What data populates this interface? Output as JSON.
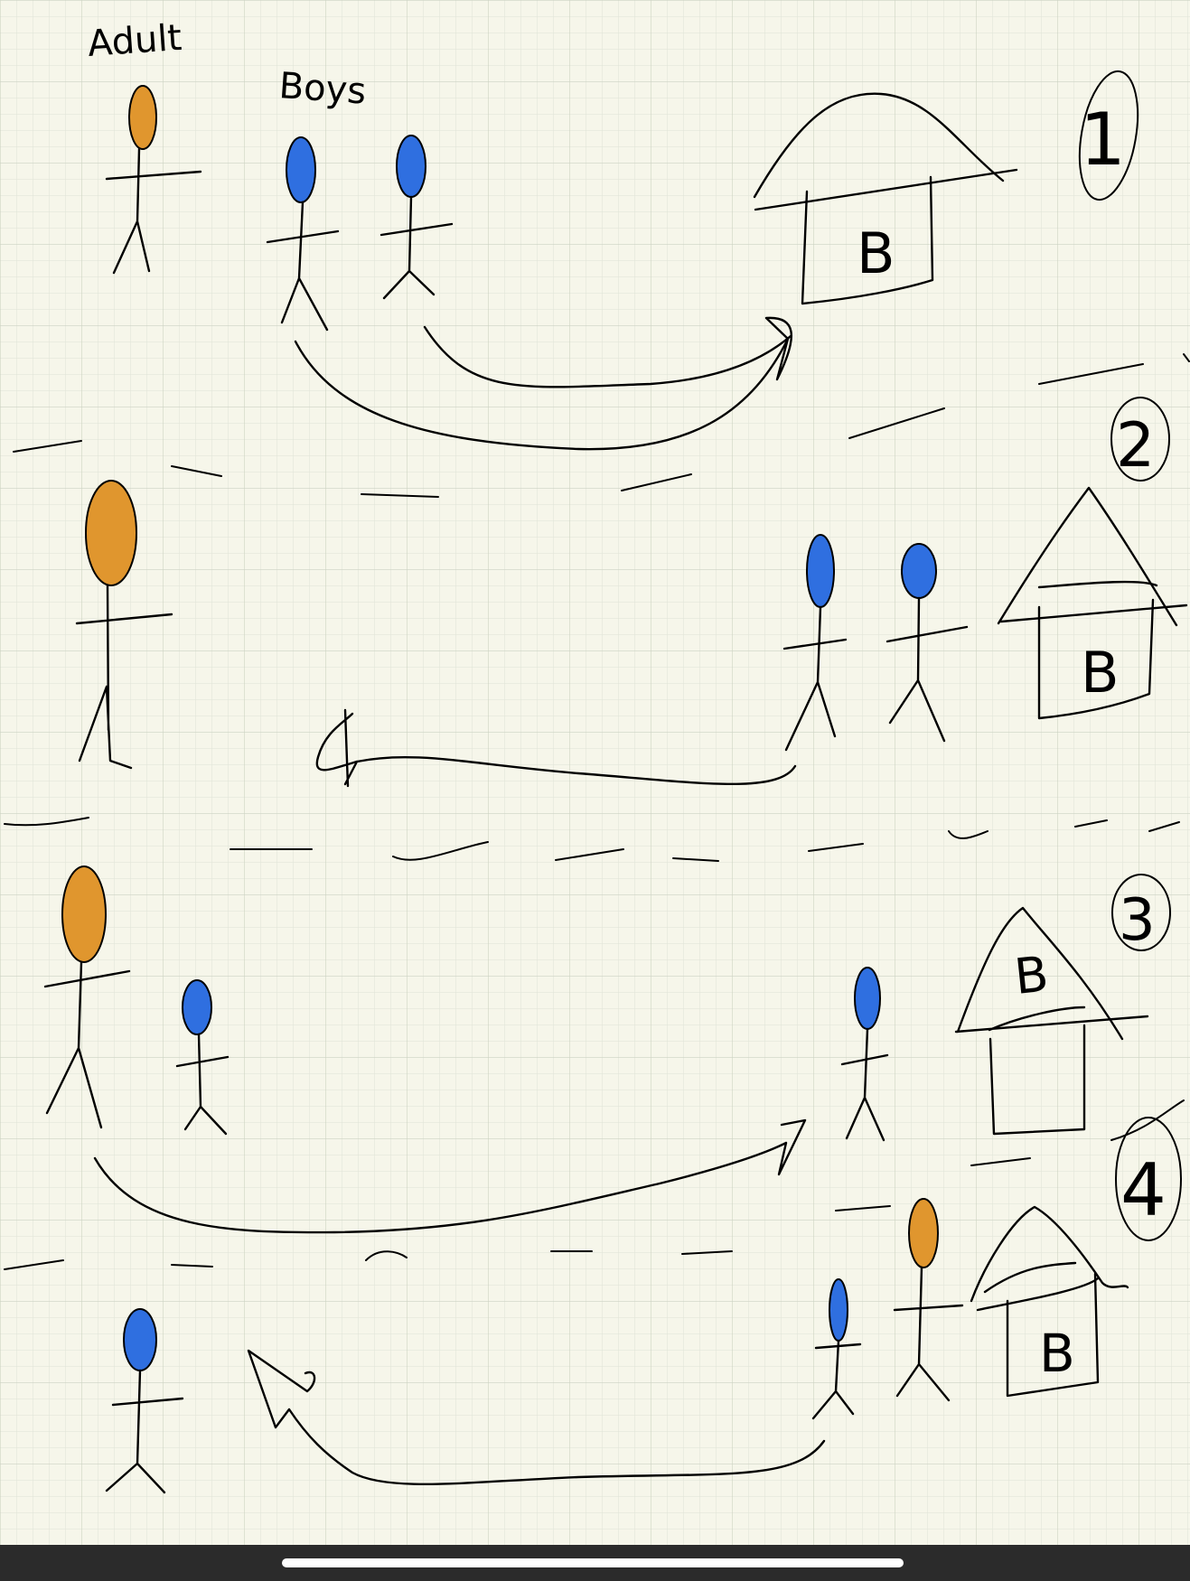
{
  "notes": {
    "adult_label": "Adult",
    "boys_label": "Boys",
    "house_letter": "B",
    "step_labels": [
      "1",
      "2",
      "3",
      "4"
    ]
  },
  "colors": {
    "ink": "#000000",
    "adult_head": "#e0962e",
    "boy_head": "#2f6fe0",
    "paper": "#f6f6ea",
    "grid": "#d8ddd0"
  }
}
